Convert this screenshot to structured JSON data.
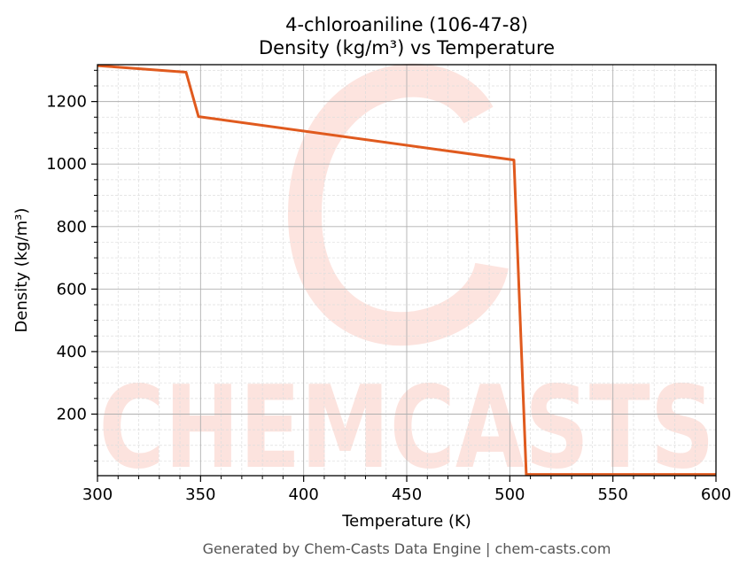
{
  "chart_data": {
    "type": "line",
    "title": "4-chloroaniline (106-47-8)",
    "subtitle": "Density (kg/m³) vs Temperature",
    "xlabel": "Temperature (K)",
    "ylabel": "Density (kg/m³)",
    "xlim": [
      300,
      600
    ],
    "ylim": [
      3,
      1318
    ],
    "xticks": [
      300,
      350,
      400,
      450,
      500,
      550,
      600
    ],
    "yticks": [
      200,
      400,
      600,
      800,
      1000,
      1200
    ],
    "grid": true,
    "series": [
      {
        "color": "#e05a1e",
        "x": [
          300,
          343,
          349,
          502,
          508,
          600
        ],
        "y": [
          1315,
          1294,
          1152,
          1013,
          7,
          7
        ]
      }
    ]
  },
  "watermark": "CHEMCASTS",
  "footer": "Generated by Chem-Casts Data Engine | chem-casts.com"
}
